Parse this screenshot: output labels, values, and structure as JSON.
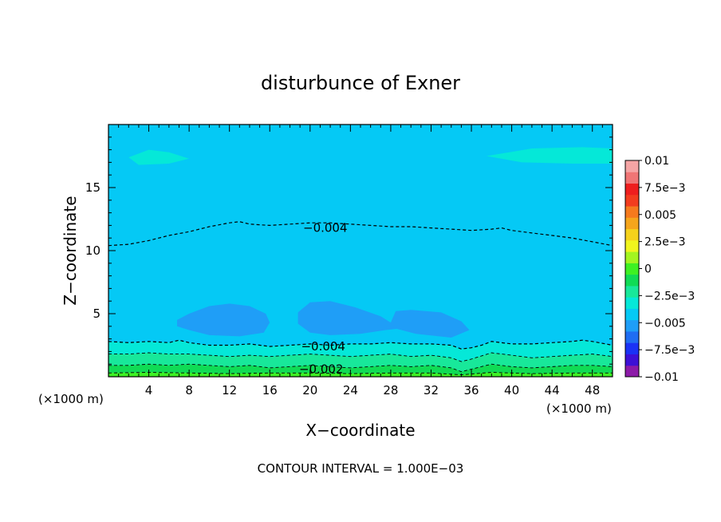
{
  "chart_data": {
    "type": "heatmap",
    "title": "disturbunce of Exner",
    "xlabel": "X−coordinate",
    "ylabel": "Z−coordinate",
    "x_unit_left": "(×1000 m)",
    "x_unit_right": "(×1000 m)",
    "xlim": [
      0,
      50
    ],
    "ylim": [
      0,
      20
    ],
    "x_ticks": [
      4,
      8,
      12,
      16,
      20,
      24,
      28,
      32,
      36,
      40,
      44,
      48
    ],
    "x_tick_labels": [
      "4",
      "8",
      "12",
      "16",
      "20",
      "24",
      "28",
      "32",
      "36",
      "40",
      "44",
      "48"
    ],
    "y_ticks": [
      5,
      10,
      15
    ],
    "y_tick_labels": [
      "5",
      "10",
      "15"
    ],
    "footer": "CONTOUR INTERVAL = 1.000E−03",
    "colorbar": {
      "range": [
        -0.01,
        0.01
      ],
      "tick_values": [
        0.01,
        0.0075,
        0.005,
        0.0025,
        0,
        -0.0025,
        -0.005,
        -0.0075,
        -0.01
      ],
      "tick_labels": [
        "0.01",
        "7.5e−3",
        "0.005",
        "2.5e−3",
        "0",
        "−2.5e−3",
        "−0.005",
        "−7.5e−3",
        "−0.01"
      ],
      "colors": [
        "#8c1aa8",
        "#3d10d6",
        "#1a32f5",
        "#1f6df2",
        "#1f9ef7",
        "#05c9f5",
        "#05e8d8",
        "#18e89a",
        "#10db55",
        "#3ef023",
        "#a3f520",
        "#f0f51e",
        "#f5d21c",
        "#f5a51c",
        "#f57a1e",
        "#f23c1e",
        "#ee1e1e",
        "#f07575",
        "#f5a5a5"
      ]
    },
    "contour_labels": [
      {
        "text": "−0.004",
        "x": 21.5,
        "y": 11.8
      },
      {
        "text": "−0.004",
        "x": 21.3,
        "y": 2.4
      },
      {
        "text": "−0.002",
        "x": 21.1,
        "y": 0.6
      }
    ],
    "field_regions": [
      {
        "name": "upper-light-left",
        "level": -0.0035,
        "shape": [
          [
            2,
            17.4
          ],
          [
            4,
            18.0
          ],
          [
            6,
            17.8
          ],
          [
            8,
            17.3
          ],
          [
            6,
            16.9
          ],
          [
            3,
            16.8
          ]
        ]
      },
      {
        "name": "upper-light-right",
        "level": -0.0035,
        "shape": [
          [
            37.5,
            17.5
          ],
          [
            42,
            18.1
          ],
          [
            47,
            18.2
          ],
          [
            50,
            18.1
          ],
          [
            50,
            16.9
          ],
          [
            46,
            16.9
          ],
          [
            41,
            17.0
          ]
        ]
      },
      {
        "name": "minimum-left",
        "level": -0.0055,
        "shape": [
          [
            6.8,
            4.5
          ],
          [
            8,
            5.0
          ],
          [
            10,
            5.6
          ],
          [
            12,
            5.8
          ],
          [
            14,
            5.6
          ],
          [
            15.6,
            5.0
          ],
          [
            16,
            4.3
          ],
          [
            15.4,
            3.5
          ],
          [
            13,
            3.2
          ],
          [
            10,
            3.3
          ],
          [
            8,
            3.7
          ],
          [
            6.8,
            4.0
          ]
        ]
      },
      {
        "name": "minimum-right",
        "level": -0.0055,
        "shape": [
          [
            18.8,
            5.1
          ],
          [
            20,
            5.9
          ],
          [
            22,
            6.0
          ],
          [
            24.5,
            5.5
          ],
          [
            27,
            4.8
          ],
          [
            28,
            4.3
          ],
          [
            28.5,
            5.2
          ],
          [
            30,
            5.3
          ],
          [
            33,
            5.1
          ],
          [
            35,
            4.4
          ],
          [
            35.8,
            3.7
          ],
          [
            34,
            3.1
          ],
          [
            30.5,
            3.4
          ],
          [
            28.6,
            3.8
          ],
          [
            27.5,
            3.7
          ],
          [
            25,
            3.4
          ],
          [
            22,
            3.3
          ],
          [
            20,
            3.5
          ],
          [
            18.8,
            4.2
          ]
        ]
      }
    ],
    "contour_lines": [
      {
        "level": -0.004,
        "points": [
          [
            0,
            10.4
          ],
          [
            2,
            10.5
          ],
          [
            4,
            10.8
          ],
          [
            6,
            11.2
          ],
          [
            8,
            11.5
          ],
          [
            10,
            11.9
          ],
          [
            12,
            12.2
          ],
          [
            13,
            12.3
          ],
          [
            14,
            12.1
          ],
          [
            16,
            12.0
          ],
          [
            18,
            12.1
          ],
          [
            20,
            12.2
          ],
          [
            22,
            12.2
          ],
          [
            24,
            12.1
          ],
          [
            26,
            12.0
          ],
          [
            28,
            11.9
          ],
          [
            30,
            11.9
          ],
          [
            32,
            11.8
          ],
          [
            34,
            11.7
          ],
          [
            36,
            11.6
          ],
          [
            38,
            11.7
          ],
          [
            39,
            11.8
          ],
          [
            40,
            11.6
          ],
          [
            42,
            11.4
          ],
          [
            44,
            11.2
          ],
          [
            46,
            11.0
          ],
          [
            48,
            10.7
          ],
          [
            50,
            10.4
          ]
        ]
      },
      {
        "level": -0.004,
        "points": [
          [
            0,
            2.8
          ],
          [
            2,
            2.7
          ],
          [
            4,
            2.8
          ],
          [
            6,
            2.7
          ],
          [
            7,
            2.9
          ],
          [
            8,
            2.7
          ],
          [
            10,
            2.5
          ],
          [
            12,
            2.5
          ],
          [
            14,
            2.6
          ],
          [
            16,
            2.4
          ],
          [
            18,
            2.5
          ],
          [
            20,
            2.6
          ],
          [
            22,
            2.5
          ],
          [
            24,
            2.6
          ],
          [
            26,
            2.6
          ],
          [
            28,
            2.7
          ],
          [
            30,
            2.6
          ],
          [
            32,
            2.6
          ],
          [
            34,
            2.5
          ],
          [
            35,
            2.2
          ],
          [
            36,
            2.3
          ],
          [
            37,
            2.5
          ],
          [
            38,
            2.8
          ],
          [
            40,
            2.6
          ],
          [
            42,
            2.6
          ],
          [
            44,
            2.7
          ],
          [
            46,
            2.8
          ],
          [
            47,
            2.9
          ],
          [
            48,
            2.8
          ],
          [
            50,
            2.5
          ]
        ]
      },
      {
        "level": -0.003,
        "points": [
          [
            0,
            1.8
          ],
          [
            2,
            1.8
          ],
          [
            4,
            1.9
          ],
          [
            6,
            1.8
          ],
          [
            8,
            1.8
          ],
          [
            10,
            1.7
          ],
          [
            12,
            1.6
          ],
          [
            14,
            1.7
          ],
          [
            16,
            1.6
          ],
          [
            18,
            1.7
          ],
          [
            20,
            1.8
          ],
          [
            22,
            1.7
          ],
          [
            24,
            1.6
          ],
          [
            26,
            1.7
          ],
          [
            28,
            1.8
          ],
          [
            30,
            1.6
          ],
          [
            32,
            1.7
          ],
          [
            34,
            1.5
          ],
          [
            35,
            1.2
          ],
          [
            36,
            1.4
          ],
          [
            38,
            1.9
          ],
          [
            40,
            1.7
          ],
          [
            42,
            1.5
          ],
          [
            44,
            1.6
          ],
          [
            46,
            1.7
          ],
          [
            48,
            1.8
          ],
          [
            50,
            1.6
          ]
        ]
      },
      {
        "level": -0.002,
        "points": [
          [
            0,
            0.9
          ],
          [
            2,
            0.9
          ],
          [
            4,
            1.0
          ],
          [
            6,
            0.9
          ],
          [
            8,
            1.0
          ],
          [
            10,
            0.9
          ],
          [
            12,
            0.8
          ],
          [
            14,
            0.9
          ],
          [
            16,
            0.7
          ],
          [
            18,
            0.8
          ],
          [
            20,
            0.9
          ],
          [
            22,
            0.8
          ],
          [
            24,
            0.7
          ],
          [
            26,
            0.8
          ],
          [
            28,
            0.9
          ],
          [
            30,
            0.8
          ],
          [
            32,
            0.9
          ],
          [
            34,
            0.7
          ],
          [
            35,
            0.4
          ],
          [
            36,
            0.6
          ],
          [
            38,
            1.0
          ],
          [
            40,
            0.8
          ],
          [
            42,
            0.7
          ],
          [
            44,
            0.8
          ],
          [
            46,
            0.9
          ],
          [
            48,
            0.9
          ],
          [
            50,
            0.8
          ]
        ]
      },
      {
        "level": -0.001,
        "points": [
          [
            0,
            0.3
          ],
          [
            4,
            0.35
          ],
          [
            8,
            0.3
          ],
          [
            12,
            0.25
          ],
          [
            16,
            0.3
          ],
          [
            20,
            0.3
          ],
          [
            24,
            0.25
          ],
          [
            28,
            0.3
          ],
          [
            32,
            0.3
          ],
          [
            35,
            0.15
          ],
          [
            38,
            0.35
          ],
          [
            42,
            0.25
          ],
          [
            46,
            0.3
          ],
          [
            50,
            0.3
          ]
        ]
      }
    ]
  }
}
